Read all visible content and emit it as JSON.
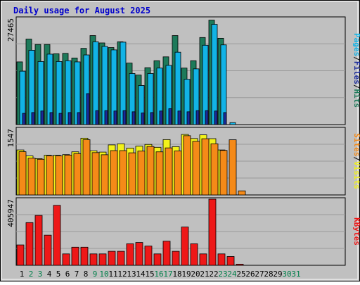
{
  "chart_data": [
    {
      "type": "bar",
      "title": "Daily usage for August 2025",
      "categories": [
        "1",
        "2",
        "3",
        "4",
        "5",
        "6",
        "7",
        "8",
        "9",
        "10",
        "11",
        "12",
        "13",
        "14",
        "15",
        "16",
        "17",
        "18",
        "19",
        "20",
        "21",
        "22",
        "23",
        "24",
        "25",
        "26",
        "27",
        "28",
        "29",
        "30",
        "31"
      ],
      "weekend_days": [
        "2",
        "3",
        "9",
        "10",
        "16",
        "17",
        "23",
        "24",
        "30",
        "31"
      ],
      "ylabel_max": "27465",
      "ylim": [
        0,
        27465
      ],
      "legend": [
        "Pages",
        "/",
        "Files",
        "/",
        "Hits"
      ],
      "series": [
        {
          "name": "Hits",
          "color": "#1d7a5a",
          "values": [
            16200,
            22100,
            20700,
            20700,
            18300,
            18400,
            17200,
            19700,
            23000,
            21100,
            19900,
            21400,
            15900,
            12800,
            14700,
            16500,
            17500,
            23000,
            14600,
            16500,
            22500,
            27000,
            22300,
            0,
            0,
            0,
            0,
            0,
            0,
            0,
            0
          ]
        },
        {
          "name": "Files",
          "color": "#12b3e6",
          "values": [
            13800,
            19200,
            16300,
            18200,
            16300,
            16500,
            16200,
            18000,
            21400,
            20200,
            19300,
            21300,
            13200,
            10100,
            13200,
            14600,
            15300,
            18700,
            11700,
            14400,
            20500,
            25900,
            20600,
            500,
            0,
            0,
            0,
            0,
            0,
            0,
            0
          ]
        },
        {
          "name": "Pages",
          "color": "#1a2a9a",
          "values": [
            2900,
            3100,
            3500,
            3100,
            2900,
            3100,
            3100,
            8000,
            3600,
            3600,
            3500,
            3600,
            3300,
            3000,
            3100,
            3500,
            4100,
            3500,
            3300,
            3600,
            3600,
            3500,
            3100,
            0,
            0,
            0,
            0,
            0,
            0,
            0,
            0
          ]
        }
      ]
    },
    {
      "type": "bar",
      "ylabel_max": "1547",
      "ylim": [
        0,
        1547
      ],
      "legend": [
        "Sites",
        "/",
        "Visits"
      ],
      "series": [
        {
          "name": "Visits",
          "color": "#f2f21a",
          "values": [
            1052,
            912,
            849,
            929,
            928,
            943,
            1008,
            1327,
            1033,
            1002,
            1170,
            1196,
            1096,
            1140,
            1181,
            1114,
            1294,
            1130,
            1414,
            1319,
            1405,
            1316,
            1052,
            0,
            0,
            0,
            0,
            0,
            0,
            0,
            0
          ]
        },
        {
          "name": "Sites",
          "color": "#f58a18",
          "values": [
            1011,
            859,
            834,
            913,
            912,
            931,
            966,
            1292,
            990,
            940,
            1036,
            1036,
            985,
            1025,
            1133,
            1008,
            1100,
            1029,
            1385,
            1253,
            1314,
            1196,
            1041,
            1290,
            95,
            0,
            0,
            0,
            0,
            0,
            0
          ]
        }
      ]
    },
    {
      "type": "bar",
      "ylabel_max": "405947",
      "ylim": [
        0,
        405947
      ],
      "legend": [
        "KBytes"
      ],
      "series": [
        {
          "name": "KBytes",
          "color": "#ee1818",
          "values": [
            125000,
            262000,
            306000,
            185000,
            368000,
            70000,
            111000,
            111000,
            70000,
            70000,
            86000,
            86000,
            132000,
            140000,
            118000,
            70000,
            148000,
            86000,
            235000,
            132000,
            70000,
            405947,
            70000,
            54000,
            7000,
            0,
            0,
            0,
            0,
            0,
            0
          ]
        }
      ]
    }
  ],
  "colors": {
    "background": "#c0c0c0",
    "plot_area": "#c0c0c0",
    "title": "#0000cc",
    "weekday_label": "#000000",
    "weekend_label": "#00804a"
  }
}
